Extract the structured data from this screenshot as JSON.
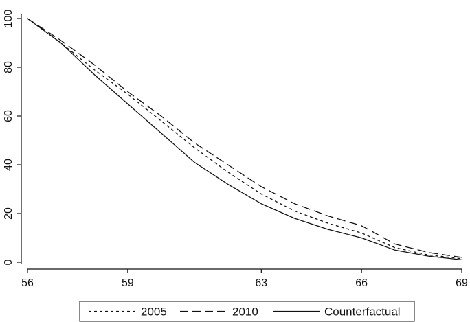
{
  "chart_data": {
    "type": "line",
    "title": "",
    "xlabel": "",
    "ylabel": "",
    "xlim": [
      56,
      69
    ],
    "ylim": [
      0,
      100
    ],
    "xticks": [
      56,
      59,
      63,
      66,
      69
    ],
    "yticks": [
      0,
      20,
      40,
      60,
      80,
      100
    ],
    "grid": false,
    "legend_position": "bottom",
    "x": [
      56,
      57,
      58,
      59,
      60,
      61,
      62,
      63,
      64,
      65,
      66,
      67,
      68,
      69
    ],
    "series": [
      {
        "name": "2005",
        "style": "short-dash",
        "color": "#111111",
        "values": [
          100,
          90,
          79,
          69,
          58,
          47,
          37,
          28,
          21,
          16,
          12,
          6,
          3,
          1.5
        ]
      },
      {
        "name": "2010",
        "style": "long-dash",
        "color": "#111111",
        "values": [
          100,
          91,
          81,
          70,
          60,
          49,
          40,
          31,
          24,
          19,
          15,
          7.5,
          4,
          2
        ]
      },
      {
        "name": "Counterfactual",
        "style": "solid",
        "color": "#111111",
        "values": [
          100,
          90,
          77,
          65,
          53,
          41,
          32,
          24,
          18,
          13.5,
          10,
          5,
          2.5,
          1
        ]
      }
    ]
  }
}
